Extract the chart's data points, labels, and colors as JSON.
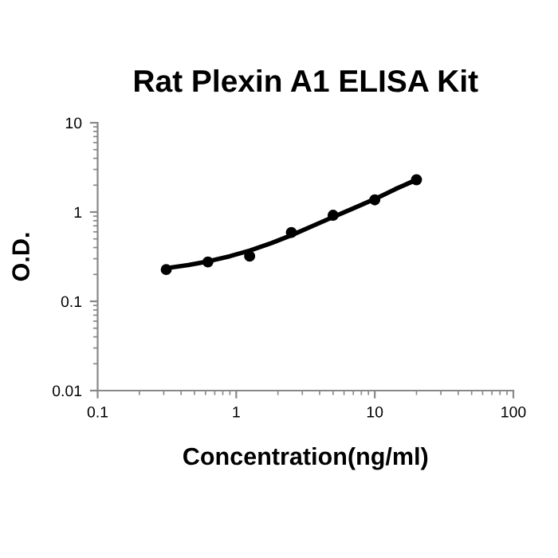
{
  "chart_data": {
    "type": "scatter",
    "title": "Rat Plexin A1 ELISA Kit",
    "xlabel": "Concentration(ng/ml)",
    "ylabel": "O.D.",
    "log": "xy",
    "xlim": [
      0.1,
      100
    ],
    "xticks": [
      0.1,
      1,
      10,
      100
    ],
    "ylim": [
      0.01,
      10
    ],
    "yticks": [
      0.01,
      0.1,
      1,
      10
    ],
    "grid": false,
    "legend": false,
    "x": [
      0.3125,
      0.625,
      1.25,
      2.5,
      5,
      10,
      20
    ],
    "series": [
      {
        "color": "#000000",
        "marker": "circle",
        "values": [
          0.227,
          0.276,
          0.32,
          0.59,
          0.92,
          1.37,
          2.3
        ]
      },
      {
        "type": "line",
        "color": "#000000",
        "marker": "none",
        "line_style": "solid",
        "x": [
          0.3125,
          0.45,
          0.625,
          0.9,
          1.25,
          1.8,
          2.5,
          3.5,
          5,
          7,
          10,
          14,
          20
        ],
        "values": [
          0.235,
          0.255,
          0.28,
          0.32,
          0.37,
          0.45,
          0.55,
          0.69,
          0.88,
          1.1,
          1.4,
          1.8,
          2.3
        ]
      }
    ]
  }
}
